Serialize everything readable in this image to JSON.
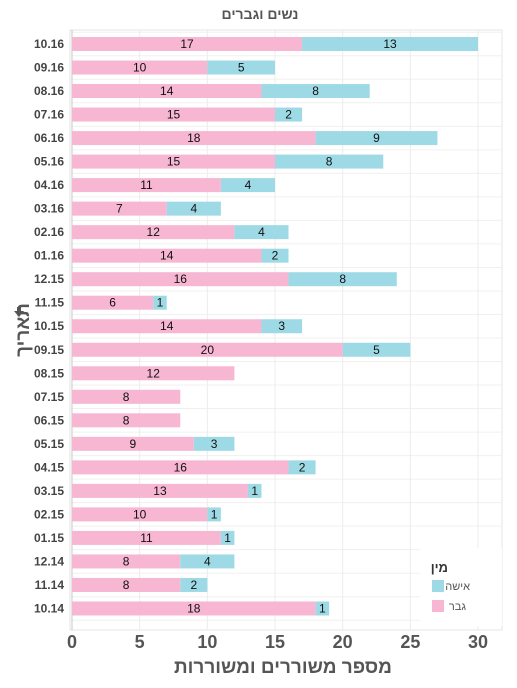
{
  "chart_data": {
    "type": "bar",
    "orientation": "horizontal",
    "stacked": true,
    "title": "נשים וגברים",
    "xlabel": "מספר משוררים ומשוררות",
    "ylabel": "תאריך",
    "xlim": [
      0,
      31
    ],
    "xticks": [
      0,
      5,
      10,
      15,
      20,
      25,
      30
    ],
    "grid": true,
    "legend": {
      "title": "מין",
      "position": "bottom-right"
    },
    "categories": [
      "10.16",
      "09.16",
      "08.16",
      "07.16",
      "06.16",
      "05.16",
      "04.16",
      "03.16",
      "02.16",
      "01.16",
      "12.15",
      "11.15",
      "10.15",
      "09.15",
      "08.15",
      "07.15",
      "06.15",
      "05.15",
      "04.15",
      "03.15",
      "02.15",
      "01.15",
      "12.14",
      "11.14",
      "10.14"
    ],
    "series": [
      {
        "name": "גבר",
        "color": "#f7b6d2",
        "values": [
          17,
          10,
          14,
          15,
          18,
          15,
          11,
          7,
          12,
          14,
          16,
          6,
          14,
          20,
          12,
          8,
          8,
          9,
          16,
          13,
          10,
          11,
          8,
          8,
          18
        ]
      },
      {
        "name": "אישה",
        "color": "#9edae5",
        "values": [
          13,
          5,
          8,
          2,
          9,
          8,
          4,
          4,
          4,
          2,
          8,
          1,
          3,
          5,
          0,
          0,
          0,
          3,
          2,
          1,
          1,
          1,
          4,
          2,
          1
        ]
      }
    ]
  }
}
